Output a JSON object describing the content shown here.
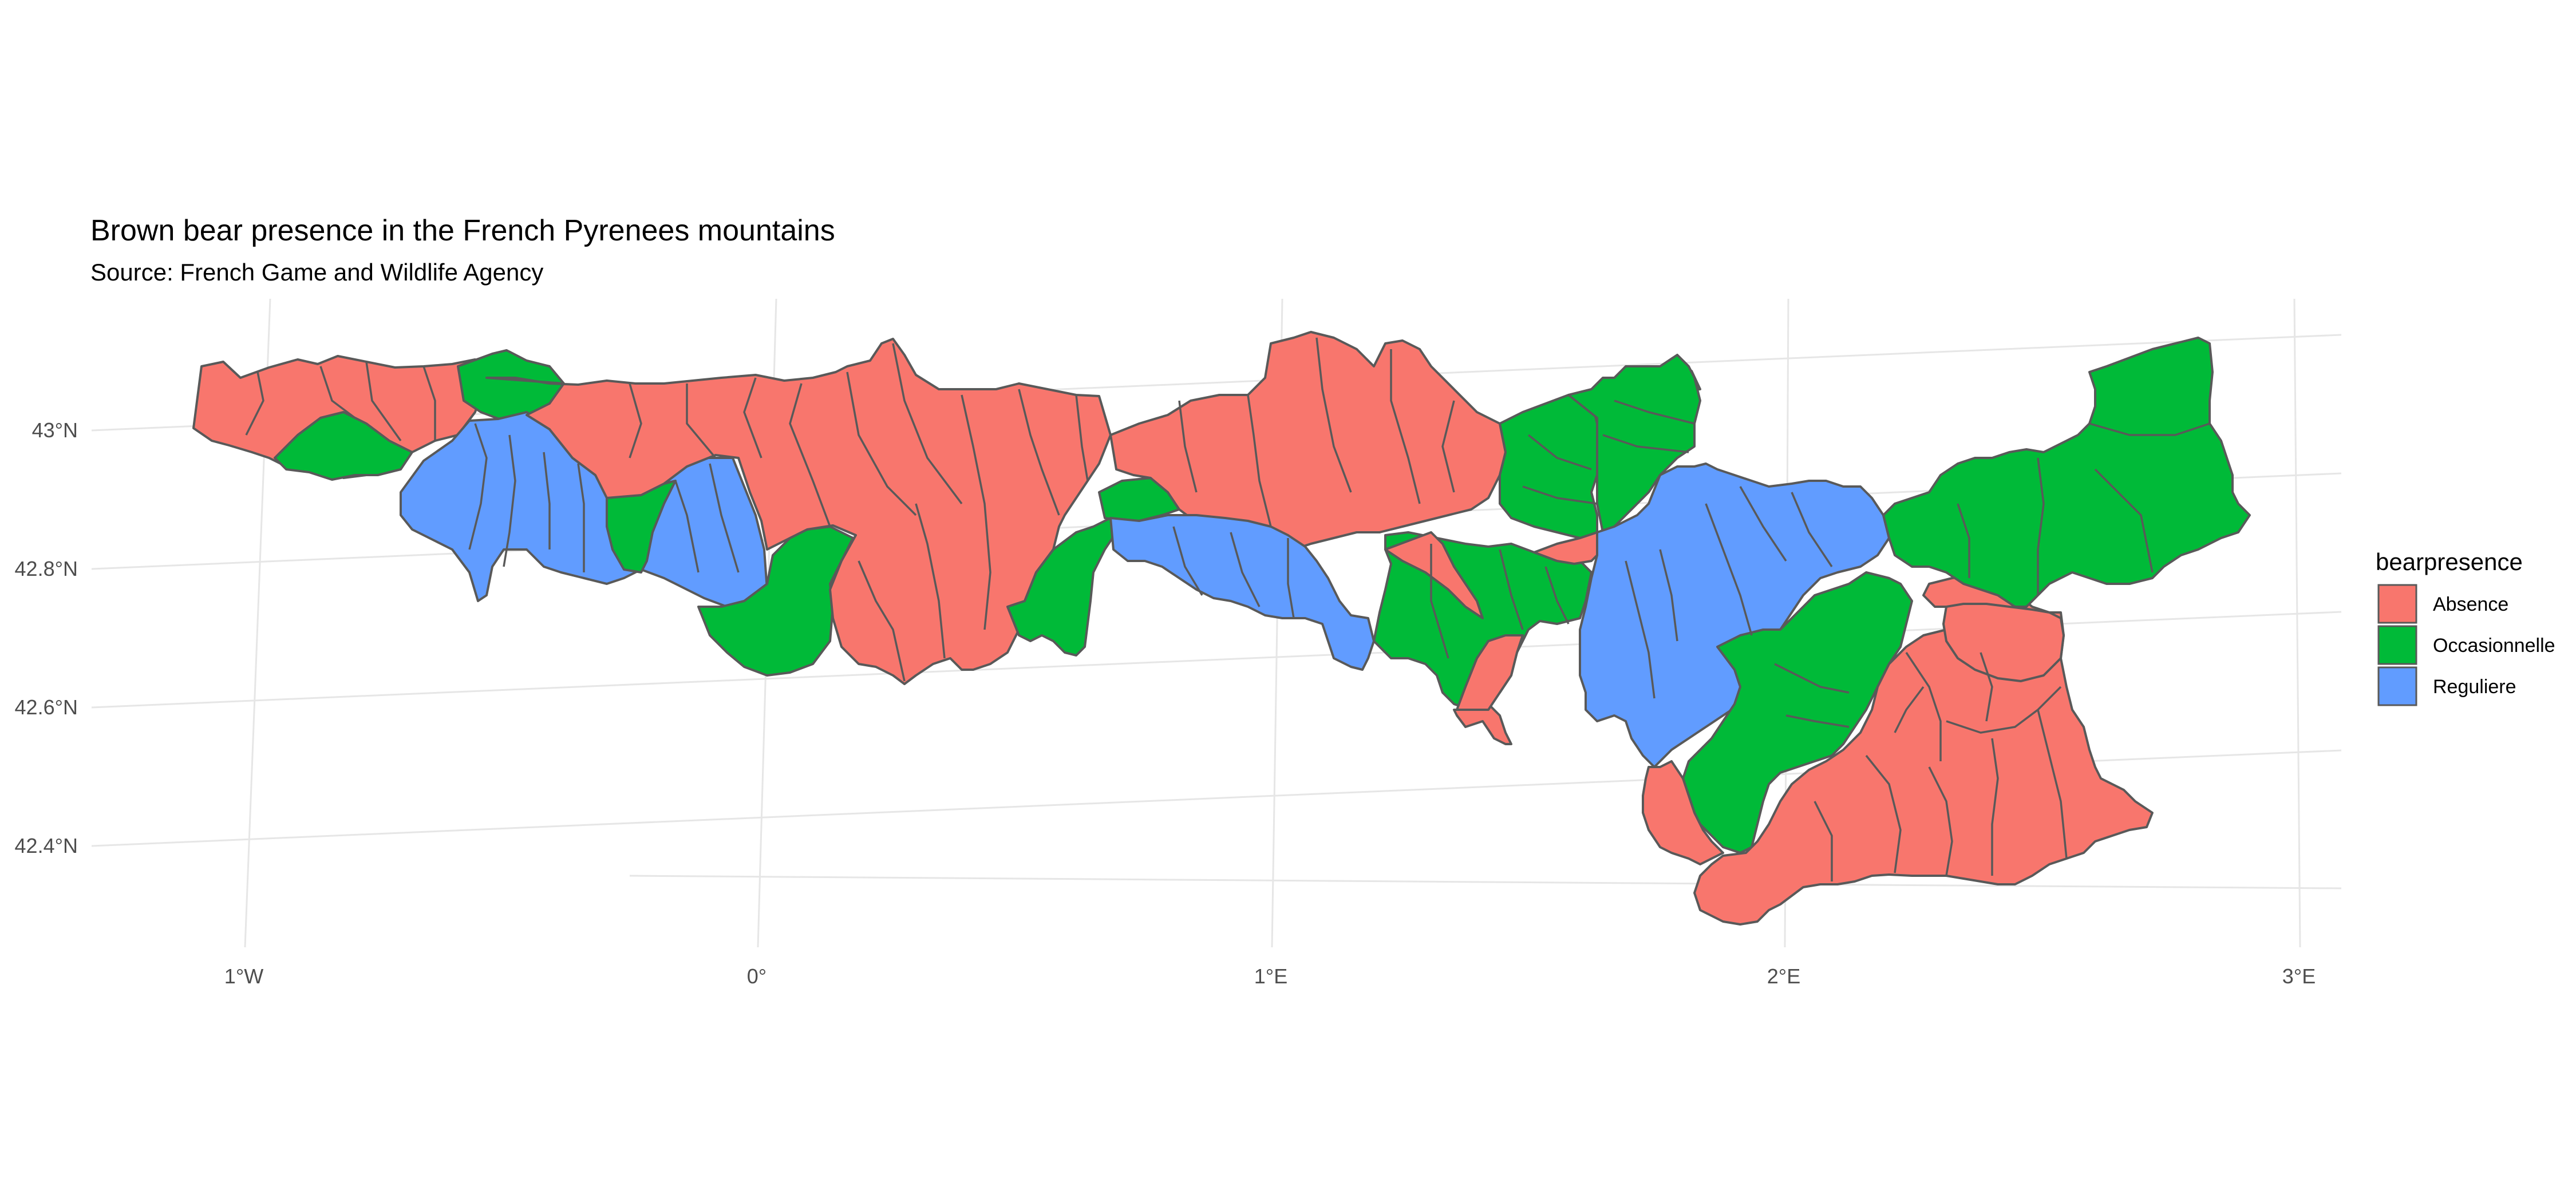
{
  "title": "Brown bear presence in the French Pyrenees mountains",
  "subtitle": "Source: French Game and Wildlife Agency",
  "axes": {
    "lon_ticks": [
      "1°W",
      "0°",
      "1°E",
      "2°E",
      "3°E"
    ],
    "lat_ticks": [
      "43°N",
      "42.8°N",
      "42.6°N",
      "42.4°N"
    ]
  },
  "legend": {
    "title": "bearpresence",
    "placement": "right",
    "items": [
      {
        "label": "Absence",
        "color": "#F8766D"
      },
      {
        "label": "Occasionnelle",
        "color": "#00BA38"
      },
      {
        "label": "Reguliere",
        "color": "#619CFF"
      }
    ]
  },
  "colors": {
    "border": "#595959",
    "graticule": "#e6e6e6"
  }
}
